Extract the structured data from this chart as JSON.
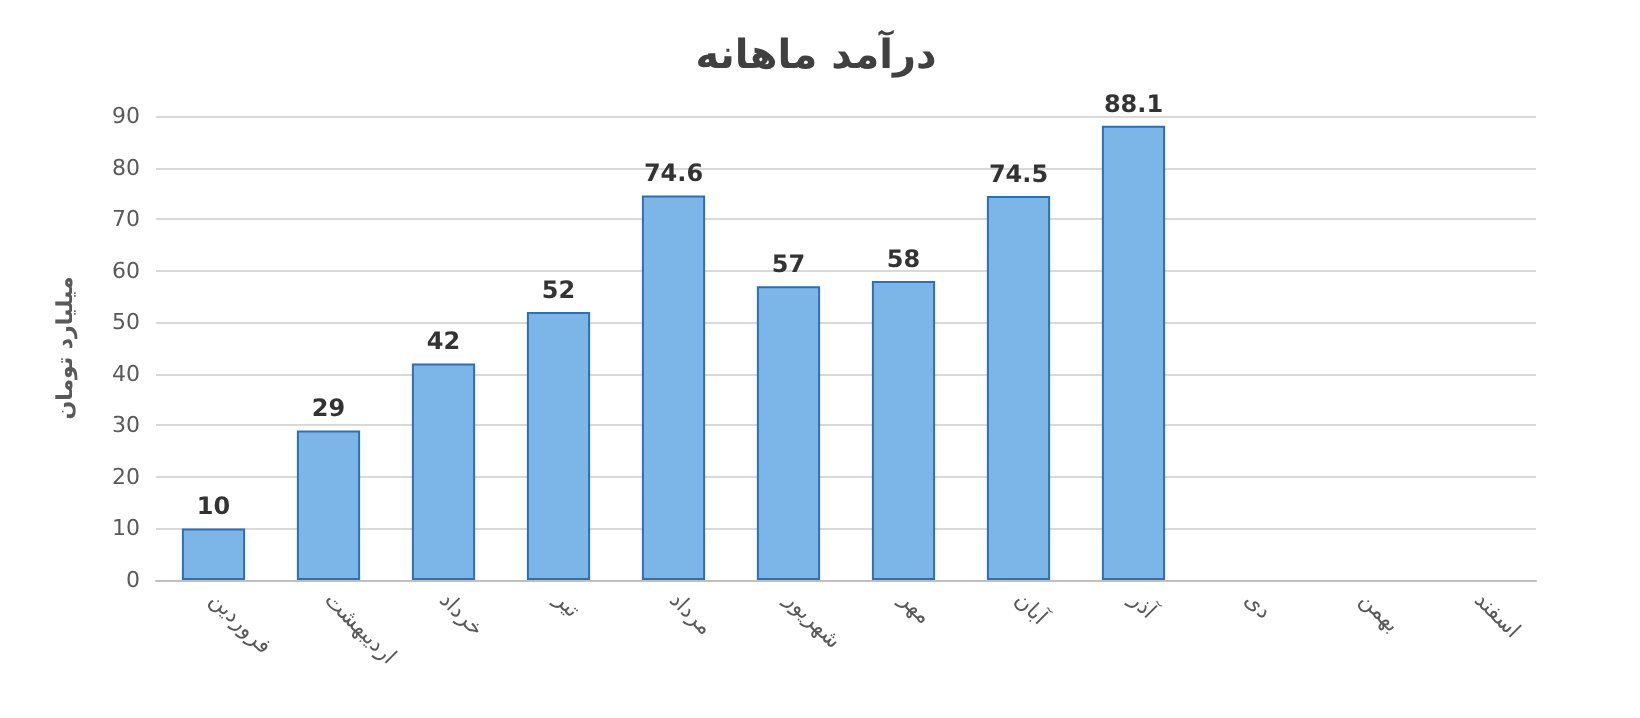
{
  "chart_data": {
    "type": "bar",
    "title": "درآمد ماهانه",
    "ylabel": "میلیارد تومان",
    "categories": [
      "فروردین",
      "اردیبهشت",
      "خرداد",
      "تیر",
      "مرداد",
      "شهریور",
      "مهر",
      "آبان",
      "آذر",
      "دی",
      "بهمن",
      "اسفند"
    ],
    "values": [
      10,
      29,
      42,
      52,
      74.6,
      57,
      58,
      74.5,
      88.1,
      null,
      null,
      null
    ],
    "color": "#7cb5e8",
    "ylim": [
      0,
      90
    ],
    "yticks": [
      0,
      10,
      20,
      30,
      40,
      50,
      60,
      70,
      80,
      90
    ],
    "grid": "y",
    "data_labels": true
  }
}
